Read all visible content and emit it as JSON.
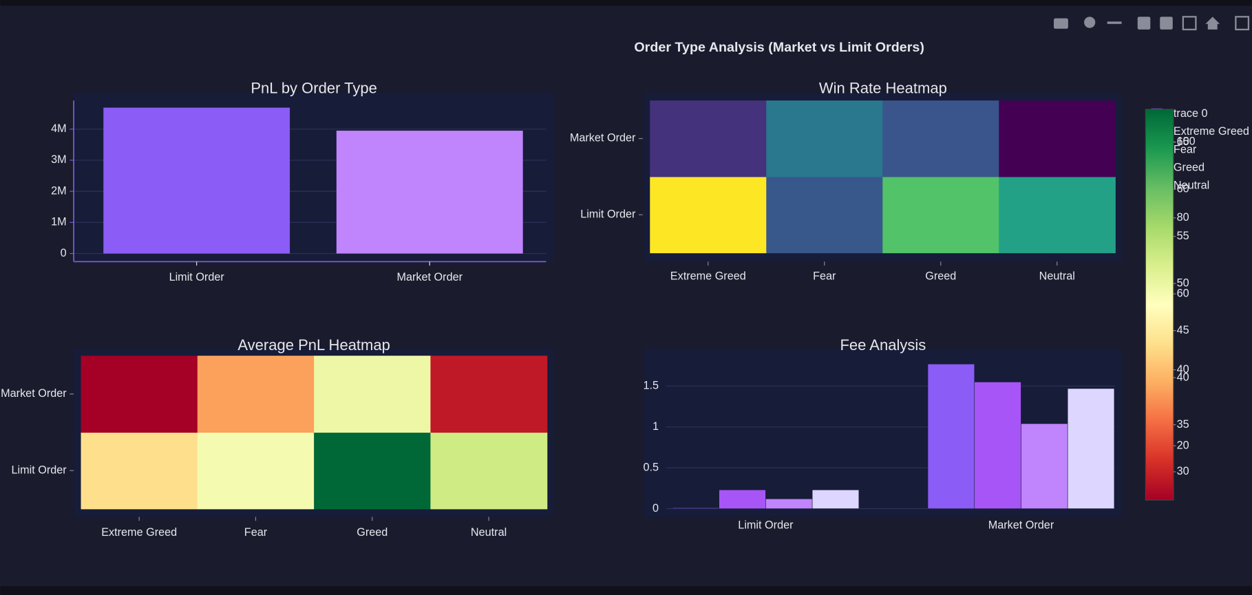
{
  "title": "Order Type Analysis (Market vs Limit Orders)",
  "chart_data": [
    {
      "type": "bar",
      "title": "PnL by Order Type",
      "categories": [
        "Limit Order",
        "Market Order"
      ],
      "series": [
        {
          "name": "trace 0",
          "colors": [
            "#8b5cf6",
            "#c084fc"
          ],
          "values": [
            4690000,
            3950000
          ]
        }
      ],
      "ylim": [
        -260000,
        4920000
      ],
      "yticks": [
        0,
        {
          "value": 1000000,
          "label": "1M"
        },
        {
          "value": 2000000,
          "label": "2M"
        },
        {
          "value": 3000000,
          "label": "3M"
        },
        {
          "value": 4000000,
          "label": "4M"
        }
      ],
      "grid": true
    },
    {
      "type": "heatmap",
      "title": "Win Rate Heatmap",
      "colorscale": "Viridis",
      "x": [
        "Extreme Greed",
        "Fear",
        "Greed",
        "Neutral"
      ],
      "y": [
        "Limit Order",
        "Market Order"
      ],
      "z": [
        [
          68.5,
          38.3,
          57,
          50.7
        ],
        [
          33,
          43.6,
          38,
          27
        ]
      ],
      "colorbar_ticks": [
        30,
        35,
        40,
        45,
        50,
        55,
        60,
        65
      ]
    },
    {
      "type": "heatmap",
      "title": "Average PnL Heatmap",
      "colorscale": "RdYlGn",
      "x": [
        "Extreme Greed",
        "Fear",
        "Greed",
        "Neutral"
      ],
      "y": [
        "Limit Order",
        "Market Order"
      ],
      "z": [
        [
          47,
          60,
          108.6,
          69.5
        ],
        [
          5.7,
          34.5,
          62,
          11
        ]
      ],
      "colorbar_ticks": [
        20,
        40,
        60,
        80,
        100
      ]
    },
    {
      "type": "grouped-bar",
      "title": "Fee Analysis",
      "categories": [
        "Limit Order",
        "Market Order"
      ],
      "series": [
        {
          "name": "Extreme Greed",
          "color": "#8b5cf6",
          "values": [
            0.01,
            1.77
          ]
        },
        {
          "name": "Fear",
          "color": "#a855f7",
          "values": [
            0.23,
            1.55
          ]
        },
        {
          "name": "Greed",
          "color": "#c084fc",
          "values": [
            0.12,
            1.04
          ]
        },
        {
          "name": "Neutral",
          "color": "#ddd6fe",
          "values": [
            0.23,
            1.47
          ]
        }
      ],
      "ylim": [
        -0.1,
        1.95
      ],
      "yticks": [
        0,
        0.5,
        1,
        1.5
      ],
      "grid": true
    }
  ]
}
